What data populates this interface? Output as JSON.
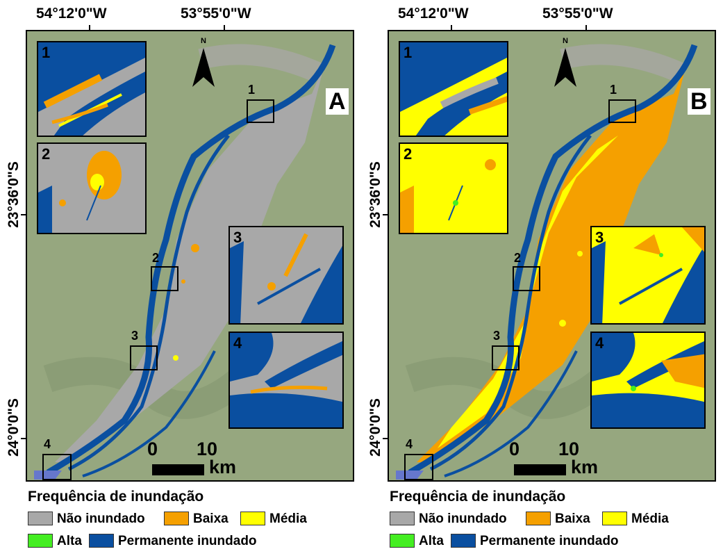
{
  "colors": {
    "nao_inundado": "#a8a8a8",
    "baixa": "#f5a000",
    "media": "#ffff00",
    "alta": "#44ee22",
    "permanente": "#0a4fa0",
    "background_imagery": "#8fa07a"
  },
  "coordinates": {
    "lon_west": "54°12'0\"W",
    "lon_east": "53°55'0\"W",
    "lat_north": "23°36'0\"S",
    "lat_south": "24°0'0\"S"
  },
  "north_arrow": {
    "label": "N",
    "icon": "north-arrow-icon"
  },
  "scale_bar": {
    "zero": "0",
    "ten": "10",
    "unit": "km"
  },
  "legend": {
    "title": "Frequência de inundação",
    "items": [
      {
        "label": "Não inundado",
        "color": "#a8a8a8"
      },
      {
        "label": "Baixa",
        "color": "#f5a000"
      },
      {
        "label": "Média",
        "color": "#ffff00"
      },
      {
        "label": "Alta",
        "color": "#44ee22"
      },
      {
        "label": "Permanente inundado",
        "color": "#0a4fa0"
      }
    ]
  },
  "panels": [
    {
      "letter": "A",
      "floodplain_class": "nao_inundado",
      "insets": [
        {
          "label": "1"
        },
        {
          "label": "2"
        },
        {
          "label": "3"
        },
        {
          "label": "4"
        }
      ],
      "zoom_boxes": [
        {
          "label": "1"
        },
        {
          "label": "2"
        },
        {
          "label": "3"
        },
        {
          "label": "4"
        }
      ]
    },
    {
      "letter": "B",
      "floodplain_class": "baixa",
      "insets": [
        {
          "label": "1"
        },
        {
          "label": "2"
        },
        {
          "label": "3"
        },
        {
          "label": "4"
        }
      ],
      "zoom_boxes": [
        {
          "label": "1"
        },
        {
          "label": "2"
        },
        {
          "label": "3"
        },
        {
          "label": "4"
        }
      ]
    }
  ]
}
